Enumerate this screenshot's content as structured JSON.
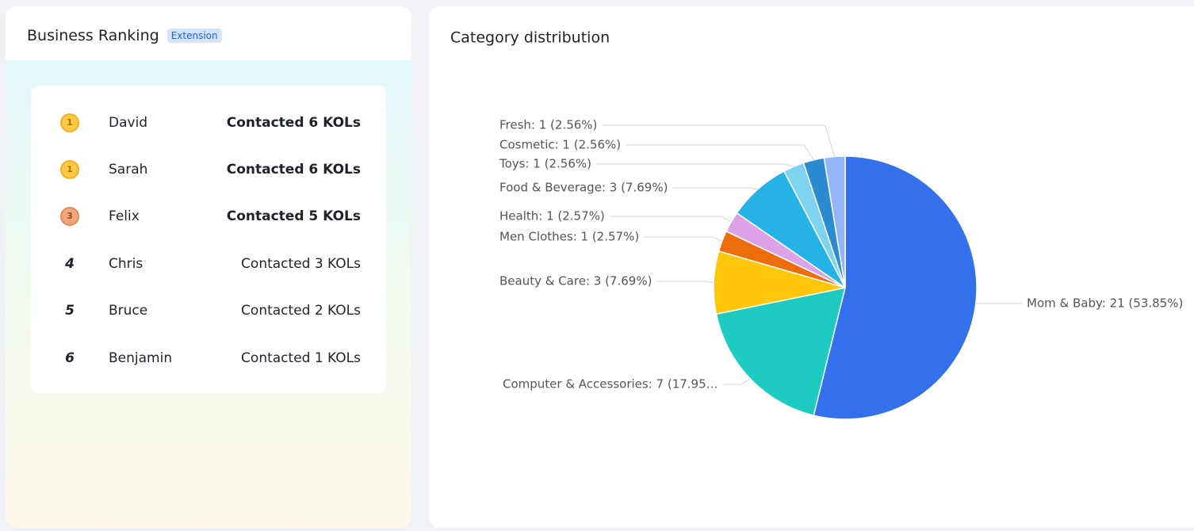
{
  "ranking": {
    "title": "Business Ranking",
    "badge": "Extension",
    "rows": [
      {
        "rank": "1",
        "name": "David",
        "text": "Contacted 6 KOLs"
      },
      {
        "rank": "1",
        "name": "Sarah",
        "text": "Contacted 6 KOLs"
      },
      {
        "rank": "3",
        "name": "Felix",
        "text": "Contacted 5 KOLs"
      },
      {
        "rank": "4",
        "name": "Chris",
        "text": "Contacted 3 KOLs"
      },
      {
        "rank": "5",
        "name": "Bruce",
        "text": "Contacted 2 KOLs"
      },
      {
        "rank": "6",
        "name": "Benjamin",
        "text": "Contacted 1 KOLs"
      }
    ]
  },
  "chart_data": {
    "type": "pie",
    "title": "Category distribution",
    "categories": [
      "Mom & Baby",
      "Computer & Accessories",
      "Beauty & Care",
      "Men Clothes",
      "Health",
      "Food & Beverage",
      "Toys",
      "Cosmetic",
      "Fresh"
    ],
    "values": [
      21,
      7,
      3,
      1,
      1,
      3,
      1,
      1,
      1
    ],
    "value_labels": [
      "Mom & Baby: 21 (53.85%)",
      "Computer & Accessories: 7 (17.95…",
      "Beauty & Care: 3 (7.69%)",
      "Men Clothes: 1 (2.57%)",
      "Health: 1 (2.57%)",
      "Food & Beverage: 3 (7.69%)",
      "Toys: 1 (2.56%)",
      "Cosmetic: 1 (2.56%)",
      "Fresh: 1 (2.56%)"
    ],
    "colors": [
      "#3370eb",
      "#1ecbc0",
      "#ffc60a",
      "#ed6d0c",
      "#dca1e6",
      "#25b2e5",
      "#7dd3f0",
      "#2a8bd0",
      "#94b5f5"
    ]
  }
}
